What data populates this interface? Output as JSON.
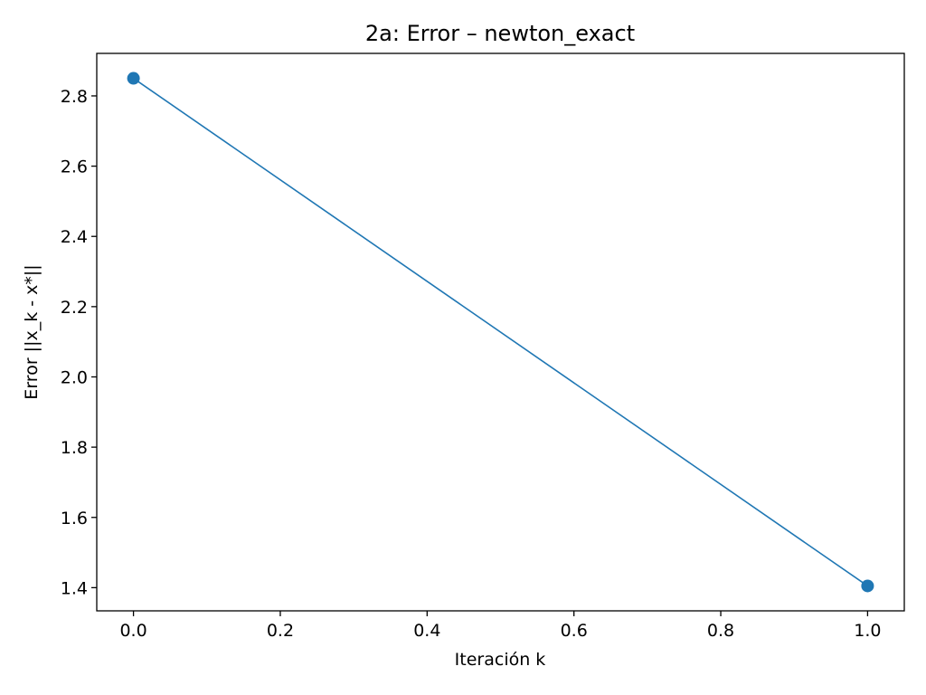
{
  "chart_data": {
    "type": "line",
    "title": "2a: Error – newton_exact",
    "xlabel": "Iteración k",
    "ylabel": "Error ||x_k - x*||",
    "x": [
      0,
      1
    ],
    "series": [
      {
        "values": [
          2.85,
          1.405
        ],
        "color": "#1f77b4",
        "marker": "circle"
      }
    ],
    "xlim": [
      -0.05,
      1.05
    ],
    "ylim": [
      1.334,
      2.921
    ],
    "xticks": [
      0.0,
      0.2,
      0.4,
      0.6,
      0.8,
      1.0
    ],
    "xtick_labels": [
      "0.0",
      "0.2",
      "0.4",
      "0.6",
      "0.8",
      "1.0"
    ],
    "yticks": [
      1.4,
      1.6,
      1.8,
      2.0,
      2.2,
      2.4,
      2.6,
      2.8
    ],
    "ytick_labels": [
      "1.4",
      "1.6",
      "1.8",
      "2.0",
      "2.2",
      "2.4",
      "2.6",
      "2.8"
    ],
    "grid": false,
    "legend": "none"
  }
}
